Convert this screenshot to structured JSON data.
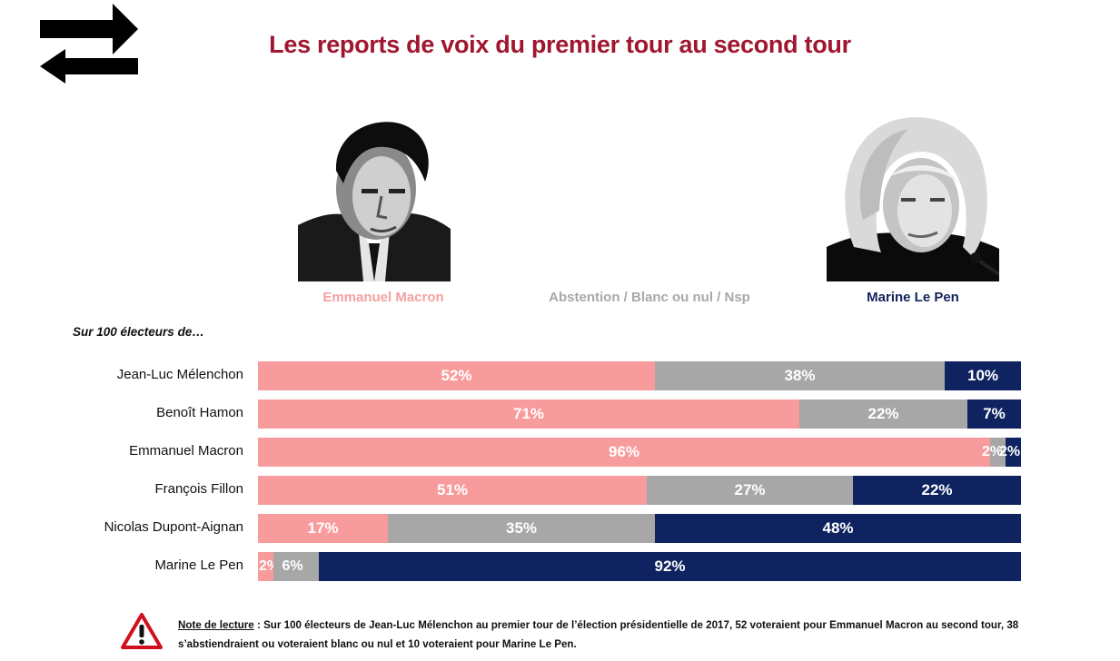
{
  "title": "Les reports de voix du premier tour au second tour",
  "colors": {
    "macron": "#f89b9c",
    "abstention": "#a7a7a7",
    "lepen": "#0f2360",
    "title": "#a0162f"
  },
  "candidates": {
    "macron": "Emmanuel Macron",
    "abstention": "Abstention / Blanc ou nul / Nsp",
    "lepen": "Marine Le Pen"
  },
  "subtitle": "Sur 100 électeurs de…",
  "chart_data": {
    "type": "bar",
    "stacked": true,
    "orientation": "horizontal",
    "title": "Les reports de voix du premier tour au second tour",
    "categories": [
      "Jean-Luc Mélenchon",
      "Benoît Hamon",
      "Emmanuel Macron",
      "François Fillon",
      "Nicolas Dupont-Aignan",
      "Marine Le Pen"
    ],
    "series": [
      {
        "name": "Emmanuel Macron",
        "values": [
          52,
          71,
          96,
          51,
          17,
          2
        ]
      },
      {
        "name": "Abstention / Blanc ou nul / Nsp",
        "values": [
          38,
          22,
          2,
          27,
          35,
          6
        ]
      },
      {
        "name": "Marine Le Pen",
        "values": [
          10,
          7,
          2,
          22,
          48,
          92
        ]
      }
    ],
    "value_suffix": "%",
    "xlim": [
      0,
      100
    ]
  },
  "note": {
    "heading": "Note de lecture",
    "text": " : Sur 100 électeurs de Jean-Luc Mélenchon au premier tour de l’élection présidentielle de 2017, 52 voteraient pour Emmanuel Macron au second tour, 38 s’abstiendraient ou voteraient blanc ou nul et 10 voteraient pour Marine Le Pen."
  }
}
